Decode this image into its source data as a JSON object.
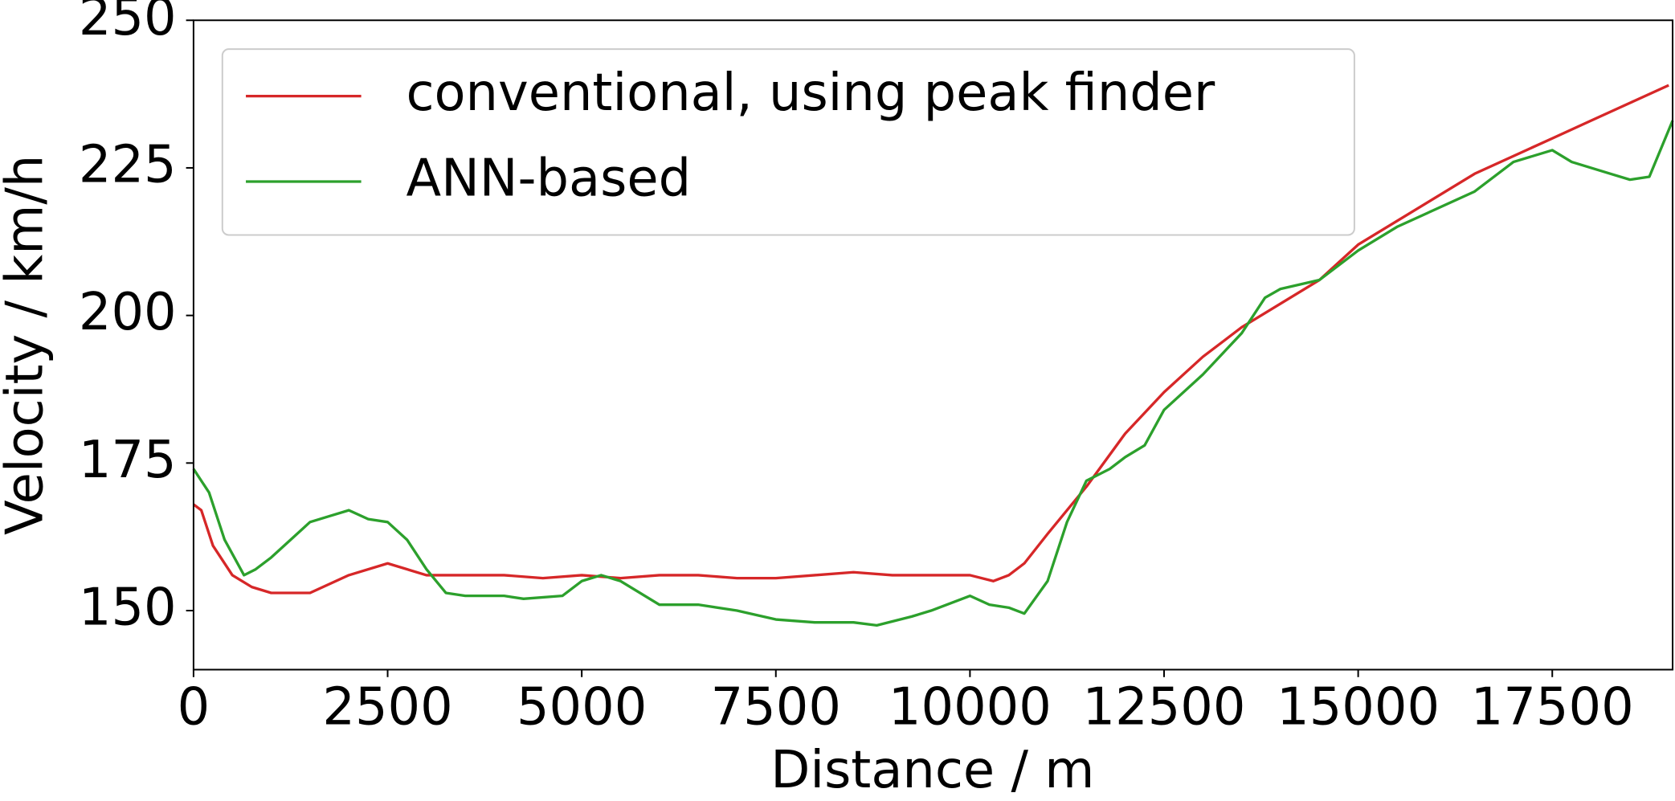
{
  "chart_data": {
    "type": "line",
    "xlabel": "Distance / m",
    "ylabel": "Velocity / km/h",
    "xlim": [
      0,
      19050
    ],
    "ylim": [
      140,
      250
    ],
    "xticks": [
      0,
      2500,
      5000,
      7500,
      10000,
      12500,
      15000,
      17500
    ],
    "yticks": [
      150,
      175,
      200,
      225,
      250
    ],
    "legend": "upper left",
    "series": [
      {
        "name": "conventional, using peak finder",
        "color": "#d62728",
        "x": [
          0,
          100,
          250,
          500,
          750,
          1000,
          1500,
          2000,
          2500,
          3000,
          3500,
          4000,
          4500,
          5000,
          5500,
          6000,
          6500,
          7000,
          7500,
          8000,
          8500,
          9000,
          9500,
          10000,
          10300,
          10500,
          10700,
          11000,
          11500,
          12000,
          12500,
          13000,
          13500,
          14000,
          14500,
          15000,
          15500,
          16000,
          16500,
          17000,
          17500,
          18000,
          18500,
          19000
        ],
        "values": [
          168,
          167,
          161,
          156,
          154,
          153,
          153,
          156,
          158,
          156,
          156,
          156,
          155.5,
          156,
          155.5,
          156,
          156,
          155.5,
          155.5,
          156,
          156.5,
          156,
          156,
          156,
          155,
          156,
          158,
          163,
          171,
          180,
          187,
          193,
          198,
          202,
          206,
          212,
          216,
          220,
          224,
          227,
          230,
          233,
          236,
          239
        ]
      },
      {
        "name": "ANN-based",
        "color": "#2ca02c",
        "x": [
          0,
          200,
          400,
          650,
          800,
          1000,
          1250,
          1500,
          1750,
          2000,
          2250,
          2500,
          2750,
          3000,
          3250,
          3500,
          4000,
          4250,
          4750,
          5000,
          5250,
          5500,
          6000,
          6500,
          7000,
          7500,
          8000,
          8500,
          8800,
          9250,
          9500,
          10000,
          10250,
          10500,
          10700,
          11000,
          11250,
          11500,
          11800,
          12000,
          12250,
          12500,
          13000,
          13500,
          13800,
          14000,
          14500,
          15000,
          15500,
          16000,
          16500,
          17000,
          17500,
          17750,
          18250,
          18500,
          18750,
          19050
        ],
        "values": [
          174,
          170,
          162,
          156,
          157,
          159,
          162,
          165,
          166,
          167,
          165.5,
          165,
          162,
          157,
          153,
          152.5,
          152.5,
          152,
          152.5,
          155,
          156,
          155,
          151,
          151,
          150,
          148.5,
          148,
          148,
          147.5,
          149,
          150,
          152.5,
          151,
          150.5,
          149.5,
          155,
          165,
          172,
          174,
          176,
          178,
          184,
          190,
          197,
          203,
          204.5,
          206,
          211,
          215,
          218,
          221,
          226,
          228,
          226,
          224,
          223,
          223.5,
          233
        ]
      }
    ]
  }
}
